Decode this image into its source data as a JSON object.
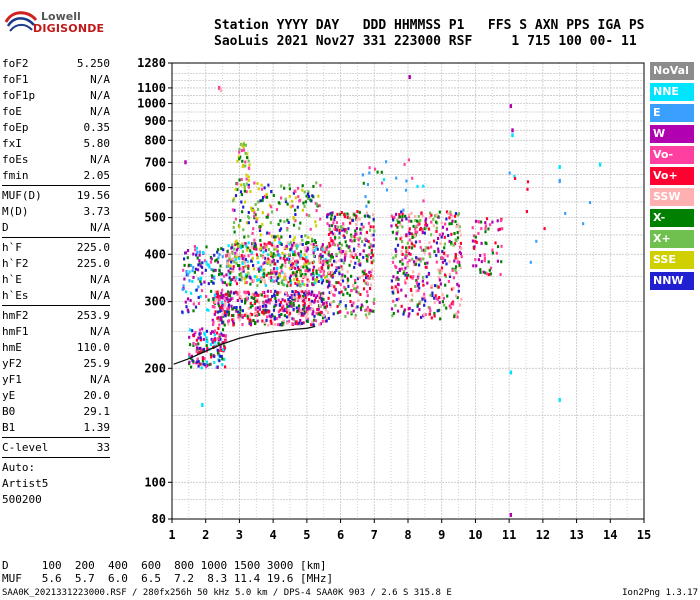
{
  "logo": {
    "line1": "Lowell",
    "line2": "DIGISONDE"
  },
  "header": {
    "line1": "Station YYYY DAY   DDD HHMMSS P1   FFS S AXN PPS IGA PS",
    "line2": "SaoLuis 2021 Nov27 331 223000 RSF     1 715 100 00- 11"
  },
  "params": {
    "group1": [
      {
        "name": "foF2",
        "value": "5.250"
      },
      {
        "name": "foF1",
        "value": "N/A"
      },
      {
        "name": "foF1p",
        "value": "N/A"
      },
      {
        "name": "foE",
        "value": "N/A"
      },
      {
        "name": "foEp",
        "value": "0.35"
      },
      {
        "name": "fxI",
        "value": "5.80"
      },
      {
        "name": "foEs",
        "value": "N/A"
      },
      {
        "name": "fmin",
        "value": "2.05"
      }
    ],
    "group2": [
      {
        "name": "MUF(D)",
        "value": "19.56"
      },
      {
        "name": "M(D)",
        "value": "3.73"
      },
      {
        "name": "D",
        "value": "N/A"
      }
    ],
    "group3": [
      {
        "name": "h`F",
        "value": "225.0"
      },
      {
        "name": "h`F2",
        "value": "225.0"
      },
      {
        "name": "h`E",
        "value": "N/A"
      },
      {
        "name": "h`Es",
        "value": "N/A"
      }
    ],
    "group4": [
      {
        "name": "hmF2",
        "value": "253.9"
      },
      {
        "name": "hmF1",
        "value": "N/A"
      },
      {
        "name": "hmE",
        "value": "110.0"
      },
      {
        "name": "yF2",
        "value": "25.9"
      },
      {
        "name": "yF1",
        "value": "N/A"
      },
      {
        "name": "yE",
        "value": "20.0"
      },
      {
        "name": "B0",
        "value": "29.1"
      },
      {
        "name": "B1",
        "value": "1.39"
      }
    ],
    "clevel": {
      "name": "C-level",
      "value": "33"
    },
    "auto": [
      "Auto:",
      "Artist5",
      "500200"
    ]
  },
  "legend": [
    {
      "label": "NoVal",
      "color": "#8c8c8c"
    },
    {
      "label": "NNE",
      "color": "#00e5ff"
    },
    {
      "label": "E",
      "color": "#3aa0ff"
    },
    {
      "label": "W",
      "color": "#b000b0"
    },
    {
      "label": "Vo-",
      "color": "#ff40a0"
    },
    {
      "label": "Vo+",
      "color": "#ff0030"
    },
    {
      "label": "SSW",
      "color": "#ffb0b0"
    },
    {
      "label": "X-",
      "color": "#008000"
    },
    {
      "label": "X+",
      "color": "#70c050"
    },
    {
      "label": "SSE",
      "color": "#d0d000"
    },
    {
      "label": "NNW",
      "color": "#2020d0"
    }
  ],
  "footer": {
    "d_row": "D     100  200  400  600  800 1000 1500 3000 [km]",
    "muf_row": "MUF   5.6  5.7  6.0  6.5  7.2  8.3 11.4 19.6 [MHz]",
    "info": "SAA0K_2021331223000.RSF / 280fx256h 50 kHz 5.0 km / DPS-4 SAA0K 903 / 2.6 S 315.8 E",
    "version": "Ion2Png 1.3.17"
  },
  "chart_data": {
    "type": "scatter",
    "xlabel": "",
    "ylabel": "",
    "xlim": [
      1,
      15
    ],
    "ylim": [
      80,
      1280
    ],
    "y_scale": "log",
    "xticks": [
      1,
      2,
      3,
      4,
      5,
      6,
      7,
      8,
      9,
      10,
      11,
      12,
      13,
      14,
      15
    ],
    "yticks": [
      80,
      100,
      200,
      300,
      400,
      500,
      600,
      700,
      800,
      900,
      1000,
      1100,
      1280
    ],
    "grid": true,
    "legend_position": "right",
    "trace": {
      "name": "",
      "x": [
        1.05,
        1.5,
        2.0,
        2.5,
        3.0,
        3.5,
        4.0,
        4.5,
        5.0,
        5.25
      ],
      "y": [
        205,
        212,
        222,
        232,
        240,
        246,
        250,
        253,
        255,
        258
      ]
    },
    "clusters": [
      {
        "x": [
          1.5,
          2.6
        ],
        "y": [
          200,
          255
        ],
        "count": 160,
        "palette": [
          10,
          3,
          5,
          1,
          4,
          7
        ]
      },
      {
        "x": [
          1.3,
          2.8
        ],
        "y": [
          280,
          420
        ],
        "count": 160,
        "palette": [
          10,
          3,
          2,
          1,
          4,
          7
        ]
      },
      {
        "x": [
          2.2,
          5.6
        ],
        "y": [
          260,
          320
        ],
        "count": 500,
        "palette": [
          5,
          4,
          3,
          10,
          6,
          7
        ]
      },
      {
        "x": [
          2.6,
          5.6
        ],
        "y": [
          330,
          430
        ],
        "count": 500,
        "palette": [
          5,
          7,
          8,
          9,
          10,
          3,
          4,
          1,
          6
        ]
      },
      {
        "x": [
          2.8,
          5.4
        ],
        "y": [
          430,
          620
        ],
        "count": 180,
        "palette": [
          7,
          8,
          9,
          10,
          4
        ]
      },
      {
        "x": [
          2.9,
          3.3
        ],
        "y": [
          600,
          800
        ],
        "count": 40,
        "palette": [
          7,
          8,
          9,
          4
        ]
      },
      {
        "x": [
          5.6,
          7.0
        ],
        "y": [
          270,
          520
        ],
        "count": 360,
        "palette": [
          5,
          4,
          7,
          3,
          10,
          6,
          8
        ]
      },
      {
        "x": [
          7.5,
          9.6
        ],
        "y": [
          270,
          520
        ],
        "count": 420,
        "palette": [
          5,
          4,
          3,
          10,
          7,
          8,
          6
        ]
      },
      {
        "x": [
          9.9,
          10.8
        ],
        "y": [
          350,
          500
        ],
        "count": 60,
        "palette": [
          5,
          4,
          3,
          7
        ]
      },
      {
        "x": [
          6.5,
          8.5
        ],
        "y": [
          520,
          720
        ],
        "count": 25,
        "palette": [
          2,
          1,
          4,
          7
        ]
      },
      {
        "x": [
          11.0,
          13.7
        ],
        "y": [
          380,
          700
        ],
        "count": 12,
        "palette": [
          1,
          2,
          5
        ]
      }
    ],
    "isolated_points": [
      {
        "x": 8.05,
        "y": 1175,
        "series": "W"
      },
      {
        "x": 2.4,
        "y": 1100,
        "series": "Vo-"
      },
      {
        "x": 2.45,
        "y": 1085,
        "series": "SSW"
      },
      {
        "x": 11.05,
        "y": 985,
        "series": "W"
      },
      {
        "x": 11.1,
        "y": 850,
        "series": "W"
      },
      {
        "x": 11.1,
        "y": 825,
        "series": "NNE"
      },
      {
        "x": 13.7,
        "y": 690,
        "series": "NNE"
      },
      {
        "x": 12.5,
        "y": 680,
        "series": "NNE"
      },
      {
        "x": 12.5,
        "y": 625,
        "series": "E"
      },
      {
        "x": 11.05,
        "y": 195,
        "series": "NNE"
      },
      {
        "x": 11.05,
        "y": 82,
        "series": "W"
      },
      {
        "x": 12.5,
        "y": 165,
        "series": "NNE"
      },
      {
        "x": 1.4,
        "y": 700,
        "series": "W"
      },
      {
        "x": 1.9,
        "y": 160,
        "series": "NNE"
      }
    ]
  }
}
